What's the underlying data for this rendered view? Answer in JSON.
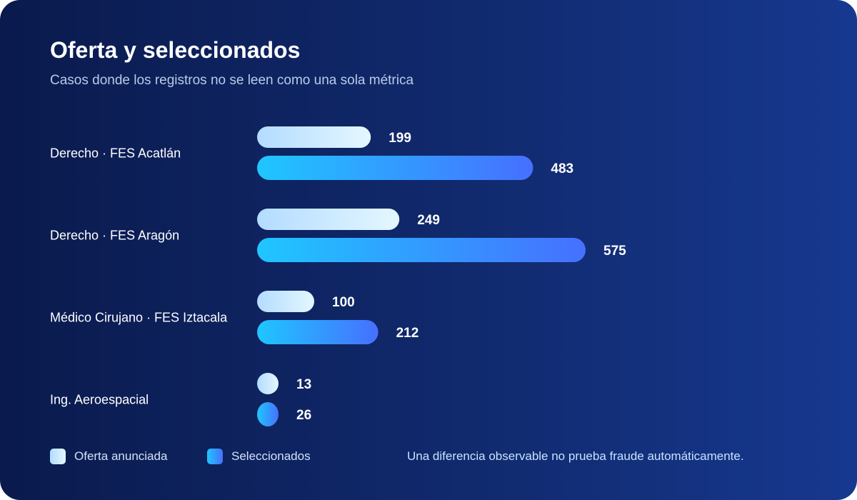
{
  "header": {
    "title": "Oferta y seleccionados",
    "subtitle": "Casos donde los registros no se leen como una sola métrica"
  },
  "note": "Una diferencia observable no prueba fraude automáticamente.",
  "colors": {
    "offer_start": "#b3dcff",
    "offer_end": "#e4f7ff",
    "selected_start": "#1fc6ff",
    "selected_end": "#4670ff",
    "background_start": "#0a1a4d",
    "background_end": "#16388f"
  },
  "chart_data": {
    "type": "bar",
    "orientation": "horizontal",
    "categories": [
      "Derecho · FES Acatlán",
      "Derecho · FES Aragón",
      "Médico Cirujano · FES Iztacala",
      "Ing. Aeroespacial"
    ],
    "series": [
      {
        "name": "Oferta anunciada",
        "values": [
          199,
          249,
          100,
          13
        ]
      },
      {
        "name": "Seleccionados",
        "values": [
          483,
          575,
          212,
          26
        ]
      }
    ],
    "xlim": [
      0,
      575
    ],
    "grid": false,
    "legend": "bottom-left",
    "data_labels": true
  }
}
